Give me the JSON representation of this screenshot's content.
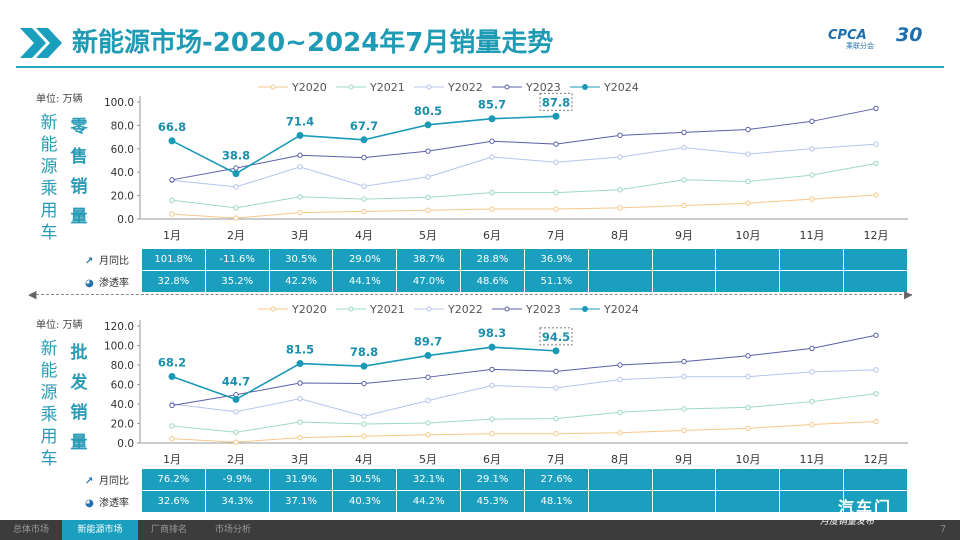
{
  "header": {
    "title": "新能源市场-2020~2024年7月销量走势",
    "logo_text": "CPCA",
    "logo_sub": "乘联分会",
    "logo_30": "30"
  },
  "legend_labels": [
    "Y2020",
    "Y2021",
    "Y2022",
    "Y2023",
    "Y2024"
  ],
  "colors": {
    "accent": "#1aa0be",
    "Y2020": "#f6c98a",
    "Y2021": "#9ed9bf",
    "Y2022": "#b7c4ea",
    "Y2023": "#5b5fa8",
    "Y2024": "#1a9ab7"
  },
  "months": [
    "1月",
    "2月",
    "3月",
    "4月",
    "5月",
    "6月",
    "7月",
    "8月",
    "9月",
    "10月",
    "11月",
    "12月"
  ],
  "retail": {
    "unit_label": "单位: 万辆",
    "side_label": "新能源乘用车",
    "side_label2": "零售销量",
    "row1_label": "月同比",
    "row2_label": "渗透率",
    "row1": [
      "101.8%",
      "-11.6%",
      "30.5%",
      "29.0%",
      "38.7%",
      "28.8%",
      "36.9%",
      "",
      "",
      "",
      "",
      ""
    ],
    "row2": [
      "32.8%",
      "35.2%",
      "42.2%",
      "44.1%",
      "47.0%",
      "48.6%",
      "51.1%",
      "",
      "",
      "",
      "",
      ""
    ]
  },
  "wholesale": {
    "unit_label": "单位: 万辆",
    "side_label": "新能源乘用车",
    "side_label2": "批发销量",
    "row1_label": "月同比",
    "row2_label": "渗透率",
    "row1": [
      "76.2%",
      "-9.9%",
      "31.9%",
      "30.5%",
      "32.1%",
      "29.1%",
      "27.6%",
      "",
      "",
      "",
      "",
      ""
    ],
    "row2": [
      "32.6%",
      "34.3%",
      "37.1%",
      "40.3%",
      "44.2%",
      "45.3%",
      "48.1%",
      "",
      "",
      "",
      "",
      ""
    ]
  },
  "footer": {
    "tabs": [
      "总体市场",
      "新能源市场",
      "厂商排名",
      "市场分析"
    ],
    "active": 1,
    "page": "7",
    "brand": "汽车门",
    "brand_sub": "月度销量发布"
  },
  "chart_data": [
    {
      "type": "line",
      "title": "零售销量",
      "ylabel": "万辆",
      "categories": [
        "1月",
        "2月",
        "3月",
        "4月",
        "5月",
        "6月",
        "7月",
        "8月",
        "9月",
        "10月",
        "11月",
        "12月"
      ],
      "ylim": [
        0,
        100
      ],
      "yticks": [
        "0.0",
        "20.0",
        "40.0",
        "60.0",
        "80.0",
        "100.0"
      ],
      "legend": "top",
      "grid": false,
      "series": [
        {
          "name": "Y2020",
          "values": [
            4.2,
            0.8,
            5.5,
            6.5,
            7.5,
            8.5,
            8.5,
            9.5,
            11.5,
            13.5,
            17.0,
            20.5
          ]
        },
        {
          "name": "Y2021",
          "values": [
            16.0,
            9.5,
            19.0,
            17.0,
            18.5,
            22.5,
            22.5,
            25.0,
            33.5,
            32.0,
            37.5,
            47.5
          ]
        },
        {
          "name": "Y2022",
          "values": [
            33.0,
            27.5,
            44.5,
            28.0,
            36.0,
            53.0,
            48.5,
            53.0,
            61.0,
            55.5,
            60.0,
            64.0
          ]
        },
        {
          "name": "Y2023",
          "values": [
            33.5,
            43.5,
            54.5,
            52.5,
            58.0,
            66.5,
            64.0,
            71.5,
            74.0,
            76.5,
            83.5,
            94.5
          ]
        },
        {
          "name": "Y2024",
          "values": [
            66.8,
            38.8,
            71.4,
            67.7,
            80.5,
            85.7,
            87.8,
            null,
            null,
            null,
            null,
            null
          ]
        }
      ],
      "data_labels": [
        "66.8",
        "38.8",
        "71.4",
        "67.7",
        "80.5",
        "85.7",
        "87.8"
      ]
    },
    {
      "type": "line",
      "title": "批发销量",
      "ylabel": "万辆",
      "categories": [
        "1月",
        "2月",
        "3月",
        "4月",
        "5月",
        "6月",
        "7月",
        "8月",
        "9月",
        "10月",
        "11月",
        "12月"
      ],
      "ylim": [
        0,
        120
      ],
      "yticks": [
        "0.0",
        "20.0",
        "40.0",
        "60.0",
        "80.0",
        "100.0",
        "120.0"
      ],
      "legend": "top",
      "grid": false,
      "series": [
        {
          "name": "Y2020",
          "values": [
            4.5,
            0.8,
            5.5,
            7.0,
            8.5,
            9.5,
            9.5,
            10.5,
            13.0,
            15.0,
            19.0,
            22.0
          ]
        },
        {
          "name": "Y2021",
          "values": [
            17.5,
            11.0,
            21.5,
            19.5,
            20.5,
            24.5,
            25.0,
            31.5,
            35.0,
            36.5,
            42.5,
            50.5
          ]
        },
        {
          "name": "Y2022",
          "values": [
            40.0,
            32.0,
            45.5,
            27.5,
            43.5,
            59.0,
            56.5,
            65.0,
            68.0,
            68.0,
            73.0,
            75.0
          ]
        },
        {
          "name": "Y2023",
          "values": [
            38.5,
            49.5,
            61.5,
            61.0,
            67.5,
            75.5,
            73.5,
            80.0,
            83.5,
            89.5,
            97.0,
            110.5
          ]
        },
        {
          "name": "Y2024",
          "values": [
            68.2,
            44.7,
            81.5,
            78.8,
            89.7,
            98.3,
            94.5,
            null,
            null,
            null,
            null,
            null
          ]
        }
      ],
      "data_labels": [
        "68.2",
        "44.7",
        "81.5",
        "78.8",
        "89.7",
        "98.3",
        "94.5"
      ]
    }
  ]
}
